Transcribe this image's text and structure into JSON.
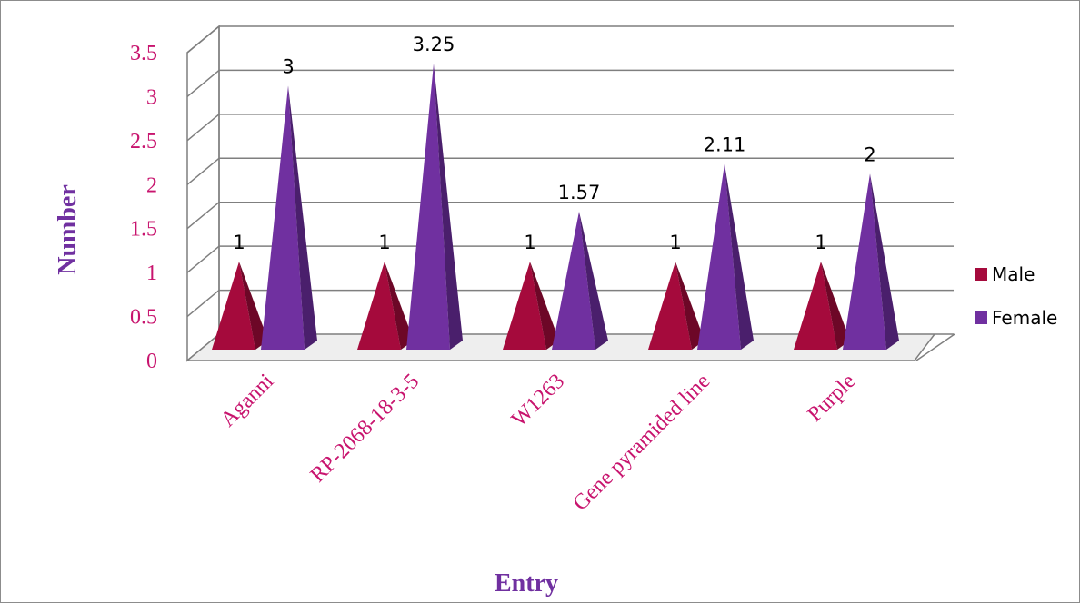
{
  "chart_data": {
    "type": "bar",
    "variant": "3d-pyramid",
    "title": "",
    "xlabel": "Entry",
    "ylabel": "Number",
    "ylim": [
      0,
      3.5
    ],
    "yticks": [
      "0",
      "0.5",
      "1",
      "1.5",
      "2",
      "2.5",
      "3",
      "3.5"
    ],
    "categories": [
      "Aganni",
      "RP-2068-18-3-5",
      "W1263",
      "Gene pyramided line",
      "Purple"
    ],
    "series": [
      {
        "name": "Male",
        "color": "#a50a3c",
        "values": [
          1,
          1,
          1,
          1,
          1
        ],
        "labels": [
          "1",
          "1",
          "1",
          "1",
          "1"
        ]
      },
      {
        "name": "Female",
        "color": "#7030a0",
        "values": [
          3,
          3.25,
          1.57,
          2.11,
          2
        ],
        "labels": [
          "3",
          "3.25",
          "1.57",
          "2.11",
          "2"
        ]
      }
    ],
    "grid": true,
    "legend": "right"
  }
}
